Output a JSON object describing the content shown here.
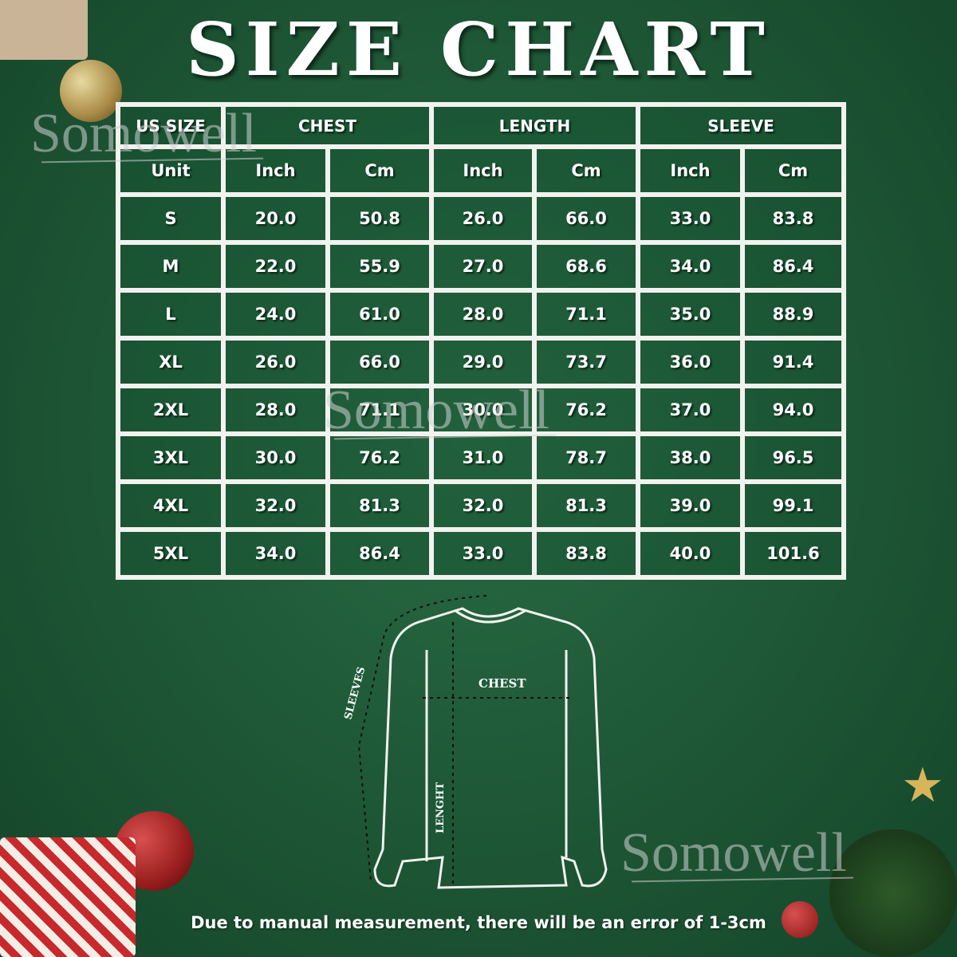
{
  "title": "SIZE CHART",
  "table": {
    "header_groups": [
      "US SIZE",
      "CHEST",
      "LENGTH",
      "SLEEVE"
    ],
    "unit_row": [
      "Unit",
      "Inch",
      "Cm",
      "Inch",
      "Cm",
      "Inch",
      "Cm"
    ],
    "rows": [
      [
        "S",
        "20.0",
        "50.8",
        "26.0",
        "66.0",
        "33.0",
        "83.8"
      ],
      [
        "M",
        "22.0",
        "55.9",
        "27.0",
        "68.6",
        "34.0",
        "86.4"
      ],
      [
        "L",
        "24.0",
        "61.0",
        "28.0",
        "71.1",
        "35.0",
        "88.9"
      ],
      [
        "XL",
        "26.0",
        "66.0",
        "29.0",
        "73.7",
        "36.0",
        "91.4"
      ],
      [
        "2XL",
        "28.0",
        "71.1",
        "30.0",
        "76.2",
        "37.0",
        "94.0"
      ],
      [
        "3XL",
        "30.0",
        "76.2",
        "31.0",
        "78.7",
        "38.0",
        "96.5"
      ],
      [
        "4XL",
        "32.0",
        "81.3",
        "32.0",
        "81.3",
        "39.0",
        "99.1"
      ],
      [
        "5XL",
        "34.0",
        "86.4",
        "33.0",
        "83.8",
        "40.0",
        "101.6"
      ]
    ]
  },
  "diagram": {
    "chest": "CHEST",
    "sleeves": "SLEEVES",
    "length": "LENGHT"
  },
  "watermark": "Somowell",
  "footer": "Due to manual measurement, there will be an error of 1-3cm",
  "colors": {
    "background": "#1f5a38",
    "lines": "#f2f2ee"
  }
}
